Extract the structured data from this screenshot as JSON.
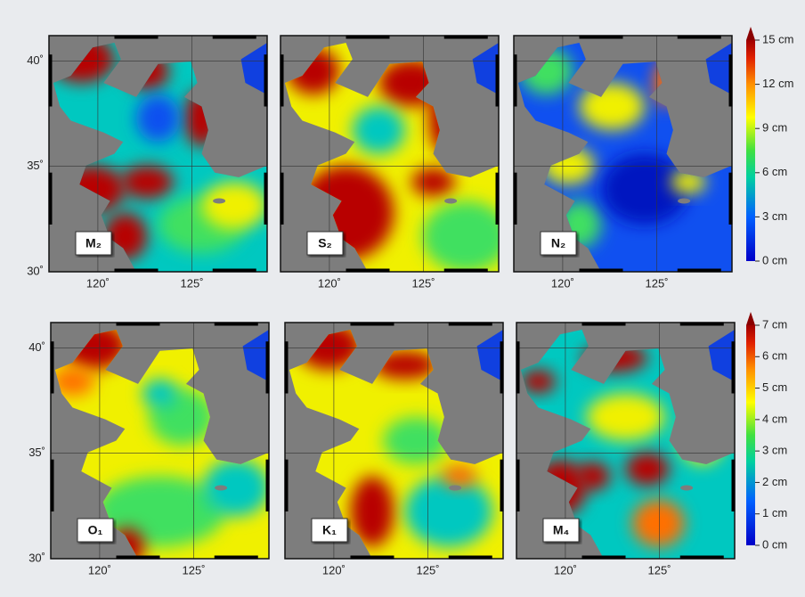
{
  "figure": {
    "panels": [
      {
        "label": "M₂"
      },
      {
        "label": "S₂"
      },
      {
        "label": "N₂"
      },
      {
        "label": "O₁"
      },
      {
        "label": "K₁"
      },
      {
        "label": "M₄"
      }
    ],
    "lon_range": [
      117.4,
      129
    ],
    "lat_range": [
      30,
      41.2
    ],
    "lon_ticks": [
      {
        "value": 120,
        "label": "120˚"
      },
      {
        "value": 125,
        "label": "125˚"
      }
    ],
    "lat_ticks": [
      {
        "value": 30,
        "label": "30˚"
      },
      {
        "value": 35,
        "label": "35˚"
      },
      {
        "value": 40,
        "label": "40˚"
      }
    ],
    "colorbars": [
      {
        "range": [
          0,
          15
        ],
        "ticks": [
          {
            "value": 0,
            "label": "0 cm"
          },
          {
            "value": 3,
            "label": "3 cm"
          },
          {
            "value": 6,
            "label": "6 cm"
          },
          {
            "value": 9,
            "label": "9 cm"
          },
          {
            "value": 12,
            "label": "12 cm"
          },
          {
            "value": 15,
            "label": "15 cm"
          }
        ]
      },
      {
        "range": [
          0,
          7
        ],
        "ticks": [
          {
            "value": 0,
            "label": "0 cm"
          },
          {
            "value": 1,
            "label": "1 cm"
          },
          {
            "value": 2,
            "label": "2 cm"
          },
          {
            "value": 3,
            "label": "3 cm"
          },
          {
            "value": 4,
            "label": "4 cm"
          },
          {
            "value": 5,
            "label": "5 cm"
          },
          {
            "value": 6,
            "label": "6 cm"
          },
          {
            "value": 7,
            "label": "7 cm"
          }
        ]
      }
    ]
  }
}
